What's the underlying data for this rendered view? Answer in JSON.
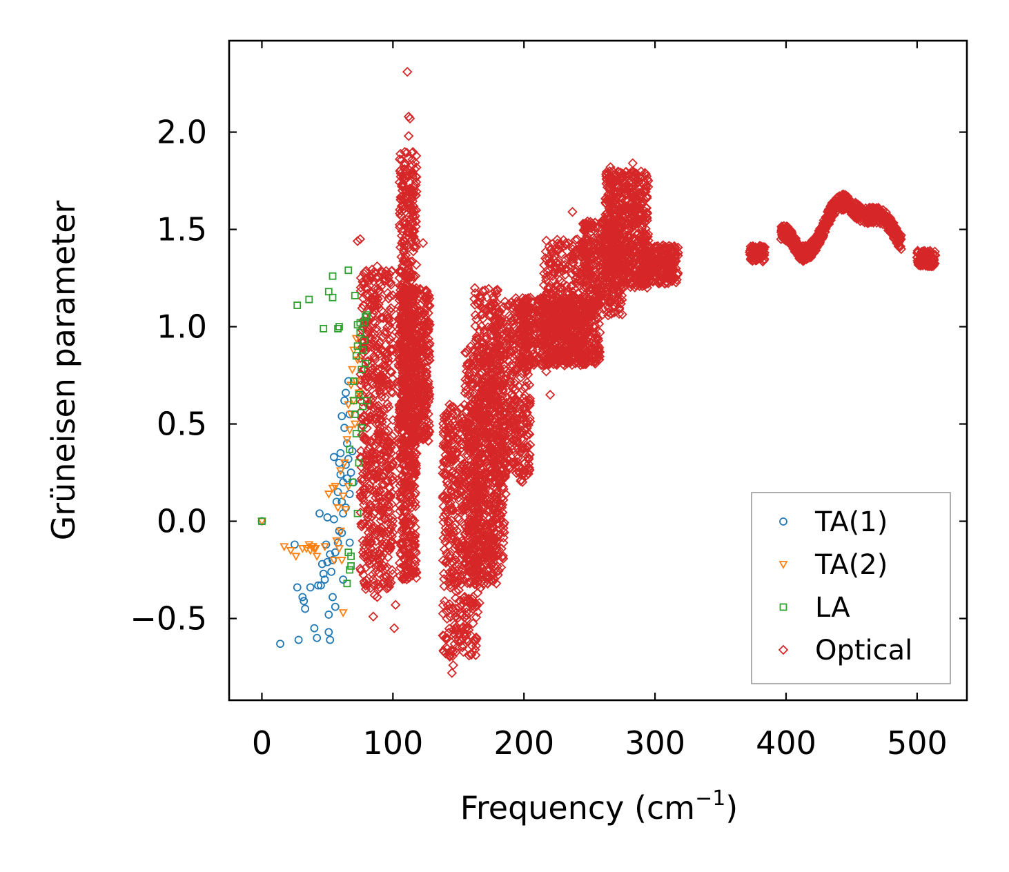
{
  "chart_data": {
    "type": "scatter",
    "title": "",
    "xlabel": "Frequency (cm",
    "xlabel_sup": "−1",
    "xlabel_end": ")",
    "ylabel": "Grüneisen parameter",
    "xlim": [
      -25,
      538
    ],
    "ylim": [
      -0.92,
      2.47
    ],
    "xticks": [
      0,
      100,
      200,
      300,
      400,
      500
    ],
    "xtick_labels": [
      "0",
      "100",
      "200",
      "300",
      "400",
      "500"
    ],
    "yticks": [
      -0.5,
      0.0,
      0.5,
      1.0,
      1.5,
      2.0
    ],
    "ytick_labels": [
      "−0.5",
      "0.0",
      "0.5",
      "1.0",
      "1.5",
      "2.0"
    ],
    "grid": false,
    "legend_position": "lower-right",
    "series": [
      {
        "name": "TA(1)",
        "marker": "circle",
        "color": "#1f77b4",
        "points": [
          [
            0,
            0
          ],
          [
            14,
            -0.63
          ],
          [
            25,
            -0.12
          ],
          [
            27,
            -0.34
          ],
          [
            28,
            -0.61
          ],
          [
            31,
            -0.39
          ],
          [
            32,
            -0.41
          ],
          [
            33,
            -0.45
          ],
          [
            37,
            -0.34
          ],
          [
            40,
            -0.55
          ],
          [
            42,
            -0.6
          ],
          [
            43,
            -0.33
          ],
          [
            44,
            0.04
          ],
          [
            45,
            -0.33
          ],
          [
            46,
            -0.22
          ],
          [
            47,
            -0.27
          ],
          [
            48,
            -0.3
          ],
          [
            49,
            -0.12
          ],
          [
            50,
            -0.21
          ],
          [
            50,
            0.02
          ],
          [
            51,
            -0.57
          ],
          [
            51,
            -0.48
          ],
          [
            52,
            -0.61
          ],
          [
            52,
            -0.17
          ],
          [
            53,
            -0.26
          ],
          [
            54,
            -0.2
          ],
          [
            54,
            -0.39
          ],
          [
            55,
            0.01
          ],
          [
            55,
            0.33
          ],
          [
            56,
            -0.16
          ],
          [
            56,
            -0.44
          ],
          [
            57,
            0.1
          ],
          [
            58,
            -0.11
          ],
          [
            58,
            0.15
          ],
          [
            59,
            -0.05
          ],
          [
            59,
            0.3
          ],
          [
            60,
            0.35
          ],
          [
            60,
            0.24
          ],
          [
            61,
            0.1
          ],
          [
            61,
            -0.06
          ],
          [
            61,
            0.54
          ],
          [
            62,
            0.2
          ],
          [
            62,
            -0.3
          ],
          [
            62,
            0.04
          ],
          [
            63,
            0.62
          ],
          [
            63,
            0.48
          ],
          [
            64,
            0.07
          ],
          [
            64,
            0.29
          ],
          [
            64,
            0.66
          ],
          [
            65,
            0.22
          ],
          [
            65,
            0.4
          ],
          [
            66,
            0.32
          ],
          [
            66,
            0.72
          ],
          [
            67,
            -0.11
          ],
          [
            67,
            0.14
          ],
          [
            67,
            0.55
          ],
          [
            68,
            0.25
          ],
          [
            69,
            0.36
          ],
          [
            70,
            0.2
          ]
        ]
      },
      {
        "name": "TA(2)",
        "marker": "triangle-down",
        "color": "#ff7f0e",
        "points": [
          [
            0,
            0
          ],
          [
            17,
            -0.13
          ],
          [
            22,
            -0.15
          ],
          [
            26,
            -0.18
          ],
          [
            31,
            -0.14
          ],
          [
            34,
            -0.14
          ],
          [
            36,
            -0.12
          ],
          [
            37,
            -0.15
          ],
          [
            38,
            -0.13
          ],
          [
            39,
            -0.13
          ],
          [
            40,
            -0.14
          ],
          [
            41,
            -0.14
          ],
          [
            42,
            -0.18
          ],
          [
            48,
            -0.13
          ],
          [
            51,
            0.14
          ],
          [
            54,
            0.17
          ],
          [
            55,
            -0.2
          ],
          [
            56,
            0.18
          ],
          [
            57,
            -0.1
          ],
          [
            58,
            0.07
          ],
          [
            59,
            -0.14
          ],
          [
            60,
            -0.05
          ],
          [
            60,
            0.26
          ],
          [
            61,
            -0.2
          ],
          [
            62,
            -0.47
          ],
          [
            62,
            0.13
          ],
          [
            63,
            0.3
          ],
          [
            64,
            0.06
          ],
          [
            65,
            0.42
          ],
          [
            66,
            0.18
          ],
          [
            66,
            0.6
          ],
          [
            67,
            0.47
          ],
          [
            68,
            0.7
          ],
          [
            68,
            0.55
          ],
          [
            69,
            0.78
          ],
          [
            70,
            0.62
          ],
          [
            70,
            0.88
          ],
          [
            71,
            0.5
          ],
          [
            72,
            0.72
          ],
          [
            72,
            0.94
          ],
          [
            73,
            0.83
          ],
          [
            74,
            0.66
          ]
        ]
      },
      {
        "name": "LA",
        "marker": "square",
        "color": "#2ca02c",
        "points": [
          [
            0,
            0
          ],
          [
            27,
            1.11
          ],
          [
            36,
            1.14
          ],
          [
            47,
            0.99
          ],
          [
            51,
            1.18
          ],
          [
            54,
            1.15
          ],
          [
            54,
            1.26
          ],
          [
            58,
            0.99
          ],
          [
            59,
            1.0
          ],
          [
            65,
            -0.32
          ],
          [
            66,
            1.29
          ],
          [
            66,
            -0.16
          ],
          [
            67,
            0.37
          ],
          [
            67,
            -0.25
          ],
          [
            68,
            -0.18
          ],
          [
            68,
            -0.23
          ],
          [
            69,
            0.2
          ],
          [
            70,
            0.62
          ],
          [
            70,
            0.72
          ],
          [
            71,
            1.16
          ],
          [
            71,
            0.55
          ],
          [
            72,
            0.45
          ],
          [
            72,
            0.85
          ],
          [
            73,
            0.9
          ],
          [
            73,
            1.01
          ],
          [
            73,
            0.04
          ],
          [
            74,
            0.3
          ],
          [
            74,
            0.65
          ],
          [
            75,
            0.97
          ],
          [
            75,
            1.02
          ],
          [
            76,
            0.78
          ],
          [
            76,
            0.48
          ],
          [
            77,
            0.88
          ],
          [
            77,
            0.59
          ],
          [
            78,
            1.02
          ],
          [
            78,
            0.93
          ],
          [
            79,
            0.81
          ],
          [
            79,
            1.05
          ],
          [
            80,
            0.62
          ],
          [
            80,
            1.06
          ]
        ]
      },
      {
        "name": "Optical",
        "marker": "diamond",
        "color": "#d62728",
        "outliers": [
          [
            111,
            2.31
          ],
          [
            112,
            2.08
          ],
          [
            113,
            2.07
          ],
          [
            112,
            1.98
          ],
          [
            123,
            1.43
          ],
          [
            73,
            1.44
          ],
          [
            75,
            1.45
          ],
          [
            84,
            1.27
          ],
          [
            88,
            1.31
          ],
          [
            92,
            1.28
          ],
          [
            86,
            -0.38
          ],
          [
            85,
            -0.49
          ],
          [
            88,
            -0.39
          ],
          [
            101,
            -0.55
          ],
          [
            102,
            -0.43
          ],
          [
            145,
            -0.78
          ],
          [
            146,
            -0.74
          ],
          [
            145,
            -0.66
          ],
          [
            147,
            -0.58
          ],
          [
            166,
            -0.42
          ],
          [
            123,
            0.42
          ],
          [
            127,
            1.07
          ],
          [
            237,
            1.59
          ],
          [
            266,
            1.82
          ],
          [
            283,
            1.84
          ],
          [
            258,
            1.45
          ],
          [
            294,
            1.2
          ],
          [
            217,
            0.77
          ],
          [
            220,
            0.65
          ],
          [
            183,
            0.07
          ],
          [
            186,
            0.14
          ]
        ],
        "clusters": [
          {
            "x": [
              75,
              100
            ],
            "y": [
              -0.35,
              1.3
            ],
            "n": 600
          },
          {
            "x": [
              104,
              128
            ],
            "y": [
              0.4,
              1.2
            ],
            "n": 500
          },
          {
            "x": [
              105,
              118
            ],
            "y": [
              -0.3,
              1.9
            ],
            "n": 700
          },
          {
            "x": [
              138,
              165
            ],
            "y": [
              -0.7,
              0.6
            ],
            "n": 500
          },
          {
            "x": [
              155,
              185
            ],
            "y": [
              -0.3,
              0.9
            ],
            "n": 500
          },
          {
            "x": [
              162,
              180
            ],
            "y": [
              -0.35,
              1.2
            ],
            "n": 400
          },
          {
            "x": [
              178,
              205
            ],
            "y": [
              0.2,
              1.15
            ],
            "n": 400
          },
          {
            "x": [
              195,
              258
            ],
            "y": [
              0.8,
              1.15
            ],
            "n": 700
          },
          {
            "x": [
              215,
              248
            ],
            "y": [
              0.85,
              1.45
            ],
            "n": 300
          },
          {
            "x": [
              245,
              275
            ],
            "y": [
              1.05,
              1.55
            ],
            "n": 350
          },
          {
            "x": [
              262,
              295
            ],
            "y": [
              1.2,
              1.8
            ],
            "n": 600
          },
          {
            "x": [
              290,
              318
            ],
            "y": [
              1.22,
              1.42
            ],
            "n": 250
          }
        ],
        "curves": [
          {
            "x": [
              372,
              384
            ],
            "y": [
              1.33,
              1.42
            ],
            "n": 90
          },
          {
            "x": [
              396,
              488
            ],
            "y": [
              1.33,
              1.67
            ],
            "n": 700
          },
          {
            "x": [
              500,
              514
            ],
            "y": [
              1.3,
              1.4
            ],
            "n": 90
          }
        ]
      }
    ]
  }
}
